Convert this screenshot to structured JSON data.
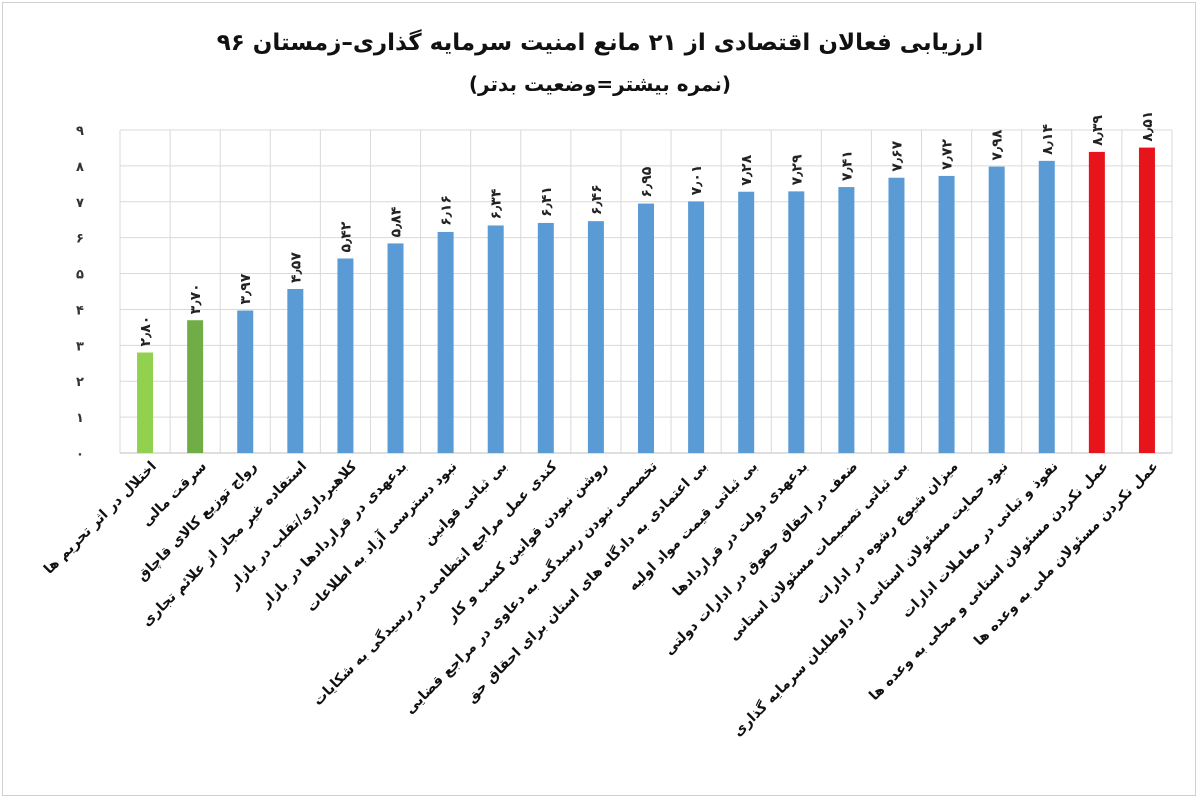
{
  "chart_data": {
    "type": "bar",
    "title": "ارزیابی فعالان اقتصادی از ۲۱ مانع امنیت سرمایه گذاری–زمستان ۹۶",
    "subtitle": "(نمره بیشتر=وضعیت بدتر)",
    "xlabel": "",
    "ylabel": "",
    "ylim": [
      0,
      9
    ],
    "yticks": [
      "۰",
      "۱",
      "۲",
      "۳",
      "۴",
      "۵",
      "۶",
      "۷",
      "۸",
      "۹"
    ],
    "grid": true,
    "categories": [
      "اختلال در اثر تحریم ها",
      "سرقت مالی",
      "رواج توزیع کالای قاچاق",
      "استفاده غیر مجاز از علائم تجاری",
      "کلاهبرداری/تقلب در بازار",
      "بدعهدی در قراردادها در بازار",
      "نبود دسترسی آزاد به اطلاعات",
      "بی ثباتی قوانین",
      "کندی عمل مراجع انتظامی در رسیدگی به شکایات",
      "روشن نبودن قوانین کسب و کار",
      "تخصصی نبودن رسیدگی به دعاوی در مراجع قضایی",
      "بی اعتمادی به دادگاه های استان برای احقاق حق",
      "بی ثباتی قیمت مواد اولیه",
      "بدعهدی دولت در قراردادها",
      "ضعف در احقاق حقوق در ادارات دولتی",
      "بی ثباتی تصمیمات مسئولان استانی",
      "میزان شیوع رشوه در ادارات",
      "نبود حمایت مسئولان استانی از داوطلبان سرمایه گذاری",
      "نفوذ و تبانی در معاملات ادارات",
      "عمل نکردن مسئولان استانی و محلی به وعده ها",
      "عمل نکردن مسئولان ملی به وعده ها"
    ],
    "values": [
      2.8,
      3.7,
      3.97,
      4.57,
      5.42,
      5.84,
      6.16,
      6.34,
      6.41,
      6.46,
      6.95,
      7.01,
      7.28,
      7.29,
      7.41,
      7.67,
      7.72,
      7.98,
      8.14,
      8.39,
      8.51
    ],
    "data_labels": [
      "۲٫۸۰",
      "۳٫۷۰",
      "۳٫۹۷",
      "۴٫۵۷",
      "۵٫۴۲",
      "۵٫۸۴",
      "۶٫۱۶",
      "۶٫۳۴",
      "۶٫۴۱",
      "۶٫۴۶",
      "۶٫۹۵",
      "۷٫۰۱",
      "۷٫۲۸",
      "۷٫۲۹",
      "۷٫۴۱",
      "۷٫۶۷",
      "۷٫۷۲",
      "۷٫۹۸",
      "۸٫۱۴",
      "۸٫۳۹",
      "۸٫۵۱"
    ],
    "bar_colors": [
      "#92d050",
      "#70ad47",
      "#5b9bd5",
      "#5b9bd5",
      "#5b9bd5",
      "#5b9bd5",
      "#5b9bd5",
      "#5b9bd5",
      "#5b9bd5",
      "#5b9bd5",
      "#5b9bd5",
      "#5b9bd5",
      "#5b9bd5",
      "#5b9bd5",
      "#5b9bd5",
      "#5b9bd5",
      "#5b9bd5",
      "#5b9bd5",
      "#5b9bd5",
      "#e8141b",
      "#e8141b"
    ],
    "grid_color": "#d9d9d9"
  }
}
